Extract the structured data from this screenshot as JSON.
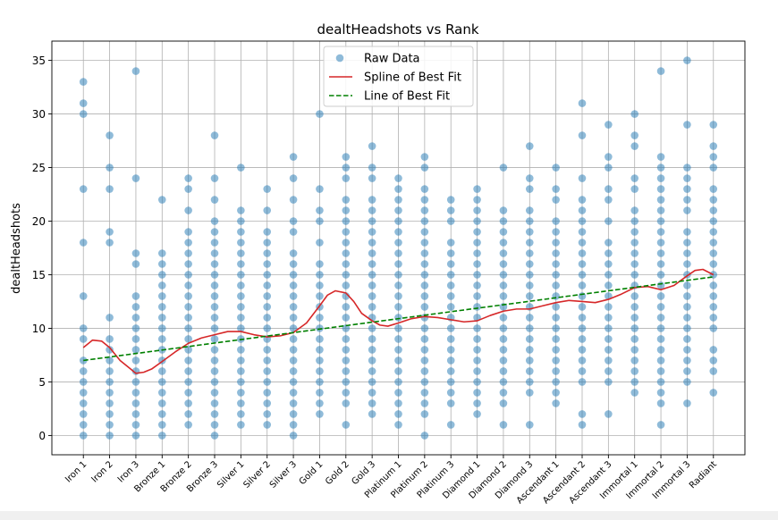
{
  "chart_data": {
    "type": "scatter",
    "title": "dealtHeadshots vs Rank",
    "xlabel": "",
    "ylabel": "dealtHeadshots",
    "ylim": [
      -1.8,
      36.8
    ],
    "yticks": [
      0,
      5,
      10,
      15,
      20,
      25,
      30,
      35
    ],
    "grid": true,
    "legend_position": "top-center",
    "categories": [
      "Iron 1",
      "Iron 2",
      "Iron 3",
      "Bronze 1",
      "Bronze 2",
      "Bronze 3",
      "Silver 1",
      "Silver 2",
      "Silver 3",
      "Gold 1",
      "Gold 2",
      "Gold 3",
      "Platinum 1",
      "Platinum 2",
      "Platinum 3",
      "Diamond 1",
      "Diamond 2",
      "Diamond 3",
      "Ascendant 1",
      "Ascendant 2",
      "Ascendant 3",
      "Immortal 1",
      "Immortal 2",
      "Immortal 3",
      "Radiant"
    ],
    "colors": {
      "raw": "#1f77b4",
      "spline": "#d62728",
      "line": "#008000"
    },
    "legend": [
      {
        "key": "raw",
        "label": "Raw Data"
      },
      {
        "key": "spline",
        "label": "Spline of Best Fit"
      },
      {
        "key": "line",
        "label": "Line of Best Fit"
      }
    ],
    "raw_data": [
      [
        0,
        1,
        2,
        3,
        4,
        5,
        6,
        7,
        9,
        10,
        13,
        18,
        23,
        30,
        31,
        33
      ],
      [
        0,
        1,
        2,
        3,
        4,
        5,
        6,
        7,
        8,
        9,
        11,
        18,
        19,
        23,
        25,
        28
      ],
      [
        0,
        1,
        2,
        3,
        4,
        5,
        6,
        7,
        8,
        9,
        10,
        11,
        12,
        13,
        16,
        17,
        24,
        34
      ],
      [
        0,
        1,
        2,
        3,
        4,
        5,
        6,
        7,
        8,
        9,
        10,
        11,
        12,
        13,
        14,
        15,
        16,
        17,
        22
      ],
      [
        1,
        2,
        3,
        4,
        5,
        6,
        7,
        8,
        9,
        10,
        11,
        12,
        13,
        14,
        15,
        16,
        17,
        18,
        19,
        21,
        23,
        24
      ],
      [
        0,
        1,
        2,
        3,
        4,
        5,
        6,
        7,
        8,
        9,
        10,
        11,
        12,
        13,
        14,
        15,
        16,
        17,
        18,
        19,
        20,
        22,
        24,
        28
      ],
      [
        1,
        2,
        3,
        4,
        5,
        6,
        7,
        8,
        9,
        10,
        11,
        12,
        13,
        14,
        15,
        16,
        17,
        18,
        19,
        20,
        21,
        25
      ],
      [
        1,
        2,
        3,
        4,
        5,
        6,
        7,
        8,
        9,
        10,
        11,
        12,
        13,
        14,
        15,
        16,
        17,
        18,
        19,
        21,
        23
      ],
      [
        0,
        1,
        2,
        3,
        4,
        5,
        6,
        7,
        8,
        9,
        10,
        11,
        12,
        13,
        14,
        15,
        16,
        17,
        19,
        20,
        22,
        24,
        26
      ],
      [
        2,
        3,
        4,
        5,
        6,
        7,
        8,
        9,
        10,
        11,
        12,
        13,
        14,
        15,
        16,
        18,
        20,
        21,
        23,
        30
      ],
      [
        1,
        3,
        4,
        5,
        6,
        7,
        8,
        9,
        10,
        11,
        12,
        13,
        14,
        15,
        16,
        17,
        18,
        19,
        20,
        21,
        22,
        24,
        25,
        26
      ],
      [
        2,
        3,
        4,
        5,
        6,
        7,
        8,
        9,
        10,
        11,
        12,
        13,
        14,
        15,
        16,
        17,
        18,
        19,
        20,
        21,
        22,
        24,
        25,
        27
      ],
      [
        1,
        2,
        3,
        4,
        5,
        6,
        7,
        8,
        9,
        10,
        11,
        12,
        13,
        14,
        15,
        16,
        17,
        18,
        19,
        20,
        21,
        22,
        23,
        24
      ],
      [
        0,
        2,
        3,
        4,
        5,
        6,
        7,
        8,
        9,
        10,
        11,
        12,
        13,
        14,
        15,
        16,
        17,
        18,
        19,
        20,
        21,
        22,
        23,
        25,
        26
      ],
      [
        1,
        3,
        4,
        5,
        6,
        7,
        8,
        9,
        10,
        11,
        12,
        13,
        14,
        15,
        16,
        17,
        18,
        20,
        21,
        22
      ],
      [
        2,
        3,
        4,
        5,
        6,
        7,
        8,
        9,
        10,
        11,
        12,
        13,
        14,
        15,
        16,
        17,
        18,
        19,
        20,
        21,
        22,
        23
      ],
      [
        1,
        3,
        4,
        5,
        6,
        7,
        8,
        9,
        10,
        11,
        12,
        13,
        14,
        15,
        16,
        17,
        18,
        19,
        20,
        21,
        25
      ],
      [
        1,
        4,
        5,
        6,
        7,
        8,
        9,
        10,
        11,
        12,
        13,
        14,
        15,
        16,
        17,
        18,
        19,
        20,
        21,
        23,
        24,
        27
      ],
      [
        3,
        4,
        5,
        6,
        7,
        8,
        9,
        10,
        11,
        12,
        13,
        14,
        15,
        16,
        17,
        18,
        19,
        20,
        22,
        23,
        25
      ],
      [
        1,
        2,
        5,
        6,
        7,
        8,
        9,
        10,
        11,
        12,
        13,
        14,
        15,
        16,
        17,
        18,
        19,
        20,
        21,
        22,
        24,
        28,
        31
      ],
      [
        2,
        5,
        6,
        7,
        8,
        9,
        10,
        11,
        12,
        13,
        14,
        15,
        16,
        17,
        18,
        20,
        22,
        23,
        25,
        26,
        29
      ],
      [
        4,
        5,
        6,
        7,
        8,
        9,
        10,
        11,
        12,
        13,
        14,
        15,
        16,
        17,
        18,
        19,
        20,
        21,
        23,
        24,
        27,
        28,
        30
      ],
      [
        1,
        3,
        4,
        5,
        6,
        7,
        8,
        9,
        10,
        11,
        12,
        13,
        14,
        15,
        16,
        17,
        18,
        19,
        20,
        21,
        22,
        23,
        24,
        25,
        26,
        34
      ],
      [
        3,
        5,
        6,
        7,
        8,
        9,
        10,
        11,
        12,
        13,
        14,
        15,
        16,
        17,
        18,
        19,
        21,
        22,
        23,
        24,
        25,
        29,
        35
      ],
      [
        4,
        6,
        7,
        8,
        10,
        11,
        12,
        13,
        14,
        15,
        16,
        17,
        18,
        19,
        20,
        21,
        22,
        23,
        25,
        26,
        27,
        29
      ]
    ],
    "spline": {
      "x": [
        0,
        0.35,
        0.7,
        1,
        1.4,
        1.8,
        2,
        2.3,
        2.6,
        3,
        3.5,
        4,
        4.5,
        5,
        5.5,
        6,
        6.5,
        7,
        7.5,
        8,
        8.5,
        9,
        9.3,
        9.6,
        10,
        10.3,
        10.6,
        11,
        11.3,
        11.6,
        12,
        12.5,
        13,
        13.5,
        14,
        14.5,
        15,
        15.5,
        16,
        16.5,
        17,
        17.5,
        18,
        18.5,
        19,
        19.5,
        20,
        20.5,
        21,
        21.5,
        22,
        22.5,
        23,
        23.3,
        23.6,
        24
      ],
      "y": [
        8.2,
        8.9,
        8.8,
        8.2,
        7.0,
        6.2,
        5.8,
        5.9,
        6.2,
        6.9,
        7.8,
        8.6,
        9.1,
        9.4,
        9.7,
        9.7,
        9.4,
        9.2,
        9.3,
        9.6,
        10.5,
        12.1,
        13.1,
        13.5,
        13.3,
        12.5,
        11.4,
        10.7,
        10.3,
        10.2,
        10.5,
        10.9,
        11.1,
        11.0,
        10.8,
        10.6,
        10.7,
        11.2,
        11.6,
        11.8,
        11.8,
        12.1,
        12.4,
        12.6,
        12.5,
        12.4,
        12.7,
        13.2,
        13.8,
        13.9,
        13.6,
        14.0,
        14.9,
        15.4,
        15.5,
        15.0
      ]
    },
    "line": {
      "x": [
        0,
        24
      ],
      "y": [
        7.0,
        14.8
      ]
    }
  }
}
